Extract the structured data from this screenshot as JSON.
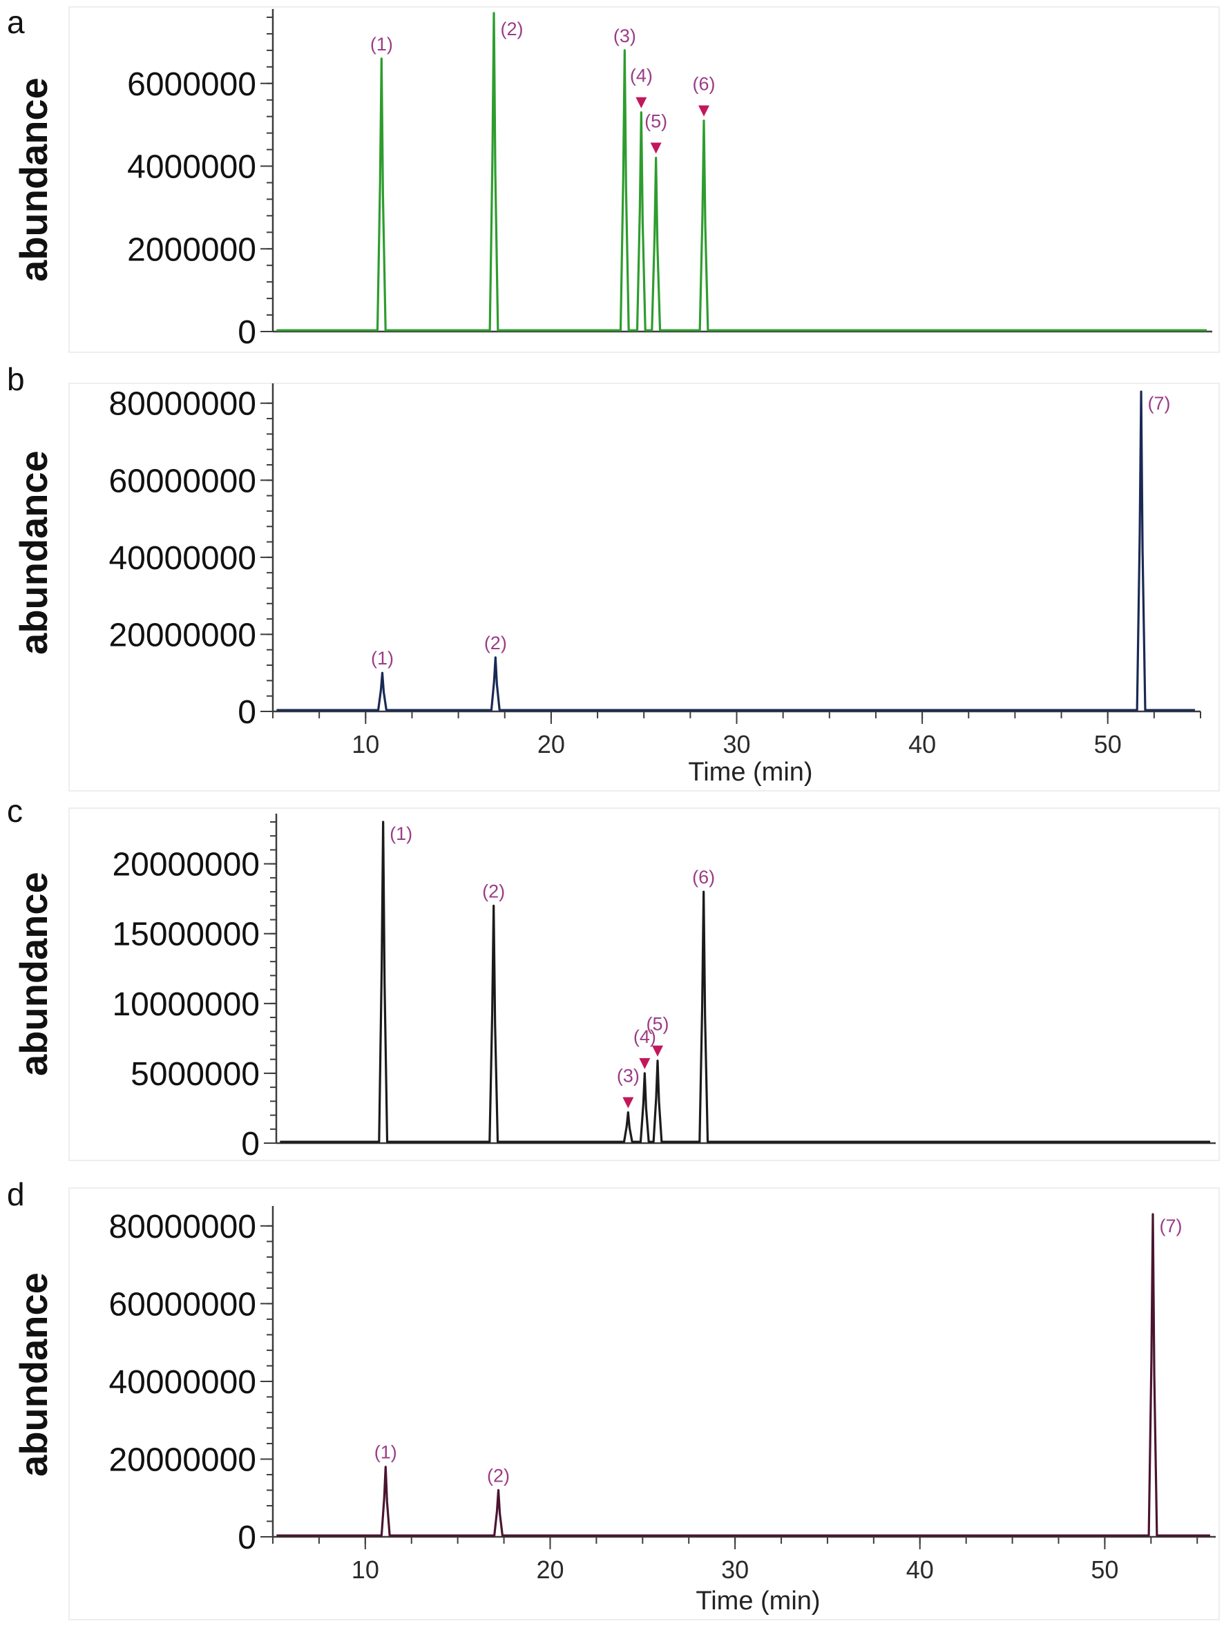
{
  "colors": {
    "panel_a": "#2e9c2e",
    "panel_b": "#1a2a55",
    "panel_c": "#1b1b1b",
    "panel_d": "#4a1530",
    "peak_label": "#9b3c86",
    "arrow": "#c2185b"
  },
  "chart_data": [
    {
      "panel": "a",
      "type": "line",
      "ylabel": "abundance",
      "xlabel": "",
      "xlim": [
        5,
        56
      ],
      "ylim": [
        0,
        7600000
      ],
      "yticks": [
        0,
        2000000,
        4000000,
        6000000
      ],
      "ytick_labels": [
        "0",
        "2000000",
        "4000000",
        "6000000"
      ],
      "xticks": [],
      "xtick_labels": [],
      "peaks": [
        {
          "label": "(1)",
          "x": 10.9,
          "y": 6600000
        },
        {
          "label": "(2)",
          "x": 17.0,
          "y": 7700000
        },
        {
          "label": "(3)",
          "x": 24.1,
          "y": 6800000
        },
        {
          "label": "(4)",
          "x": 25.0,
          "y": 5300000,
          "arrow": true
        },
        {
          "label": "(5)",
          "x": 25.8,
          "y": 4200000,
          "arrow": true
        },
        {
          "label": "(6)",
          "x": 28.4,
          "y": 5100000,
          "arrow": true
        }
      ]
    },
    {
      "panel": "b",
      "type": "line",
      "ylabel": "abundance",
      "xlabel": "Time (min)",
      "xlim": [
        5,
        55
      ],
      "ylim": [
        0,
        83000000
      ],
      "yticks": [
        0,
        20000000,
        40000000,
        60000000,
        80000000
      ],
      "ytick_labels": [
        "0",
        "20000000",
        "40000000",
        "60000000",
        "80000000"
      ],
      "xticks": [
        10,
        20,
        30,
        40,
        50
      ],
      "xtick_labels": [
        "10",
        "20",
        "30",
        "40",
        "50"
      ],
      "peaks": [
        {
          "label": "(1)",
          "x": 10.9,
          "y": 10000000
        },
        {
          "label": "(2)",
          "x": 17.0,
          "y": 14000000
        },
        {
          "label": "(7)",
          "x": 51.8,
          "y": 83000000
        }
      ]
    },
    {
      "panel": "c",
      "type": "line",
      "ylabel": "abundance",
      "xlabel": "",
      "xlim": [
        5,
        56
      ],
      "ylim": [
        0,
        23000000
      ],
      "yticks": [
        0,
        5000000,
        10000000,
        15000000,
        20000000
      ],
      "ytick_labels": [
        "0",
        "5000000",
        "10000000",
        "15000000",
        "20000000"
      ],
      "xticks": [],
      "xtick_labels": [],
      "peaks": [
        {
          "label": "(1)",
          "x": 10.8,
          "y": 23000000
        },
        {
          "label": "(2)",
          "x": 16.8,
          "y": 17000000
        },
        {
          "label": "(3)",
          "x": 24.1,
          "y": 2200000,
          "arrow": true
        },
        {
          "label": "(4)",
          "x": 25.0,
          "y": 5000000,
          "arrow": true
        },
        {
          "label": "(5)",
          "x": 25.7,
          "y": 5900000,
          "arrow": true
        },
        {
          "label": "(6)",
          "x": 28.2,
          "y": 18000000
        }
      ]
    },
    {
      "panel": "d",
      "type": "line",
      "ylabel": "abundance",
      "xlabel": "Time (min)",
      "xlim": [
        5,
        56
      ],
      "ylim": [
        0,
        83000000
      ],
      "yticks": [
        0,
        20000000,
        40000000,
        60000000,
        80000000
      ],
      "ytick_labels": [
        "0",
        "20000000",
        "40000000",
        "60000000",
        "80000000"
      ],
      "xticks": [
        10,
        20,
        30,
        40,
        50
      ],
      "xtick_labels": [
        "10",
        "20",
        "30",
        "40",
        "50"
      ],
      "peaks": [
        {
          "label": "(1)",
          "x": 11.1,
          "y": 18000000
        },
        {
          "label": "(2)",
          "x": 17.2,
          "y": 12000000
        },
        {
          "label": "(7)",
          "x": 52.6,
          "y": 83000000
        }
      ]
    }
  ]
}
